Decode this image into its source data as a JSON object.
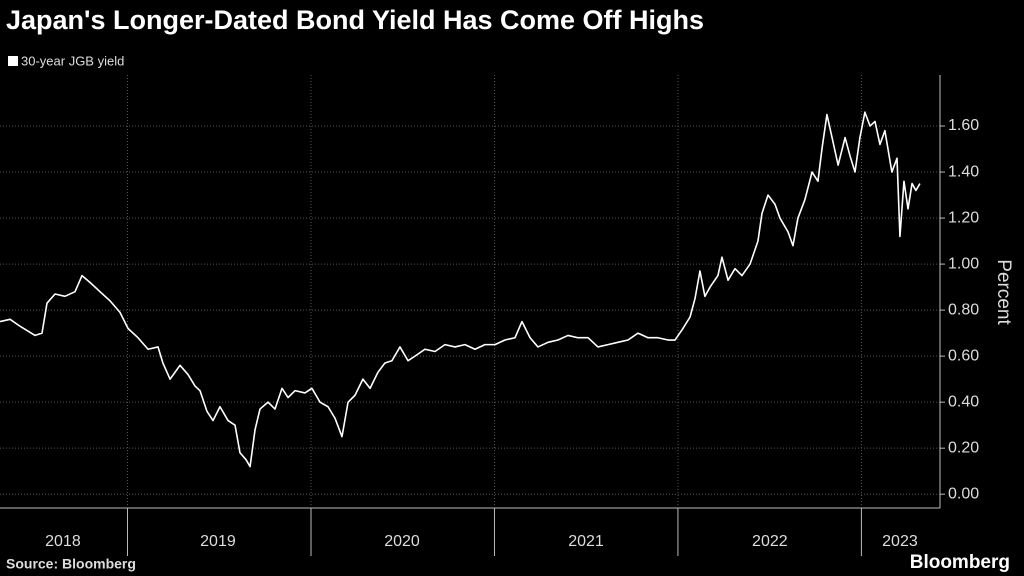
{
  "chart_data": {
    "type": "line",
    "title": "Japan's Longer-Dated Bond Yield Has Come Off Highs",
    "y_label": "Percent",
    "source": "Source: Bloomberg",
    "brand": "Bloomberg",
    "grid": true,
    "background": "#000000",
    "xlim": [
      2018.305,
      2023.412
    ],
    "xticks": [
      {
        "value": 2018.648,
        "label": "2018"
      },
      {
        "value": 2019.493,
        "label": "2019"
      },
      {
        "value": 2020.496,
        "label": "2020"
      },
      {
        "value": 2021.499,
        "label": "2021"
      },
      {
        "value": 2022.501,
        "label": "2022"
      },
      {
        "value": 2023.21,
        "label": "2023"
      }
    ],
    "x_year_boundaries": [
      2019,
      2020,
      2021,
      2022,
      2023
    ],
    "ylim": [
      -0.06,
      1.8
    ],
    "yticks": [
      {
        "value": 0,
        "label": "0.00"
      },
      {
        "value": 0.2,
        "label": "0.20"
      },
      {
        "value": 0.4,
        "label": "0.40"
      },
      {
        "value": 0.6,
        "label": "0.60"
      },
      {
        "value": 0.8,
        "label": "0.80"
      },
      {
        "value": 1.0,
        "label": "1.00"
      },
      {
        "value": 1.2,
        "label": "1.20"
      },
      {
        "value": 1.4,
        "label": "1.40"
      },
      {
        "value": 1.6,
        "label": "1.60"
      }
    ],
    "x": [
      2018.305,
      2018.36,
      2018.414,
      2018.496,
      2018.534,
      2018.561,
      2018.605,
      2018.659,
      2018.714,
      2018.752,
      2018.796,
      2018.85,
      2018.905,
      2018.959,
      2019.003,
      2019.057,
      2019.112,
      2019.166,
      2019.193,
      2019.232,
      2019.286,
      2019.33,
      2019.368,
      2019.395,
      2019.433,
      2019.466,
      2019.504,
      2019.548,
      2019.586,
      2019.613,
      2019.646,
      2019.668,
      2019.695,
      2019.722,
      2019.766,
      2019.804,
      2019.842,
      2019.875,
      2019.913,
      2019.967,
      2020.005,
      2020.049,
      2020.093,
      2020.131,
      2020.169,
      2020.202,
      2020.24,
      2020.283,
      2020.322,
      2020.365,
      2020.403,
      2020.441,
      2020.485,
      2020.529,
      2020.567,
      2020.621,
      2020.676,
      2020.73,
      2020.785,
      2020.839,
      2020.894,
      2020.948,
      2021.003,
      2021.057,
      2021.112,
      2021.15,
      2021.194,
      2021.237,
      2021.292,
      2021.346,
      2021.401,
      2021.455,
      2021.51,
      2021.564,
      2021.619,
      2021.673,
      2021.728,
      2021.782,
      2021.837,
      2021.891,
      2021.946,
      2021.984,
      2022.027,
      2022.066,
      2022.093,
      2022.12,
      2022.147,
      2022.175,
      2022.218,
      2022.24,
      2022.273,
      2022.311,
      2022.349,
      2022.393,
      2022.436,
      2022.458,
      2022.491,
      2022.529,
      2022.556,
      2022.6,
      2022.627,
      2022.654,
      2022.692,
      2022.731,
      2022.763,
      2022.785,
      2022.812,
      2022.84,
      2022.873,
      2022.911,
      2022.938,
      2022.965,
      2022.992,
      2023.019,
      2023.047,
      2023.074,
      2023.101,
      2023.128,
      2023.166,
      2023.194,
      2023.21,
      2023.232,
      2023.254,
      2023.276,
      2023.297,
      2023.319
    ],
    "series": [
      {
        "name": "30-year JGB yield",
        "color": "#ffffff",
        "values": [
          0.75,
          0.76,
          0.73,
          0.69,
          0.7,
          0.83,
          0.87,
          0.86,
          0.88,
          0.95,
          0.92,
          0.88,
          0.84,
          0.79,
          0.72,
          0.68,
          0.63,
          0.64,
          0.57,
          0.5,
          0.56,
          0.52,
          0.47,
          0.45,
          0.36,
          0.32,
          0.38,
          0.32,
          0.3,
          0.18,
          0.15,
          0.12,
          0.28,
          0.37,
          0.4,
          0.37,
          0.46,
          0.42,
          0.45,
          0.44,
          0.46,
          0.4,
          0.38,
          0.33,
          0.25,
          0.4,
          0.43,
          0.5,
          0.46,
          0.53,
          0.57,
          0.58,
          0.64,
          0.58,
          0.6,
          0.63,
          0.62,
          0.65,
          0.64,
          0.65,
          0.63,
          0.65,
          0.65,
          0.67,
          0.68,
          0.75,
          0.68,
          0.64,
          0.66,
          0.67,
          0.69,
          0.68,
          0.68,
          0.64,
          0.65,
          0.66,
          0.67,
          0.7,
          0.68,
          0.68,
          0.67,
          0.67,
          0.72,
          0.77,
          0.85,
          0.97,
          0.86,
          0.9,
          0.95,
          1.03,
          0.93,
          0.98,
          0.95,
          1.0,
          1.1,
          1.22,
          1.3,
          1.26,
          1.2,
          1.14,
          1.08,
          1.2,
          1.28,
          1.4,
          1.36,
          1.5,
          1.65,
          1.55,
          1.43,
          1.55,
          1.47,
          1.4,
          1.55,
          1.66,
          1.6,
          1.62,
          1.52,
          1.58,
          1.4,
          1.46,
          1.12,
          1.36,
          1.24,
          1.35,
          1.32,
          1.35
        ]
      }
    ]
  }
}
